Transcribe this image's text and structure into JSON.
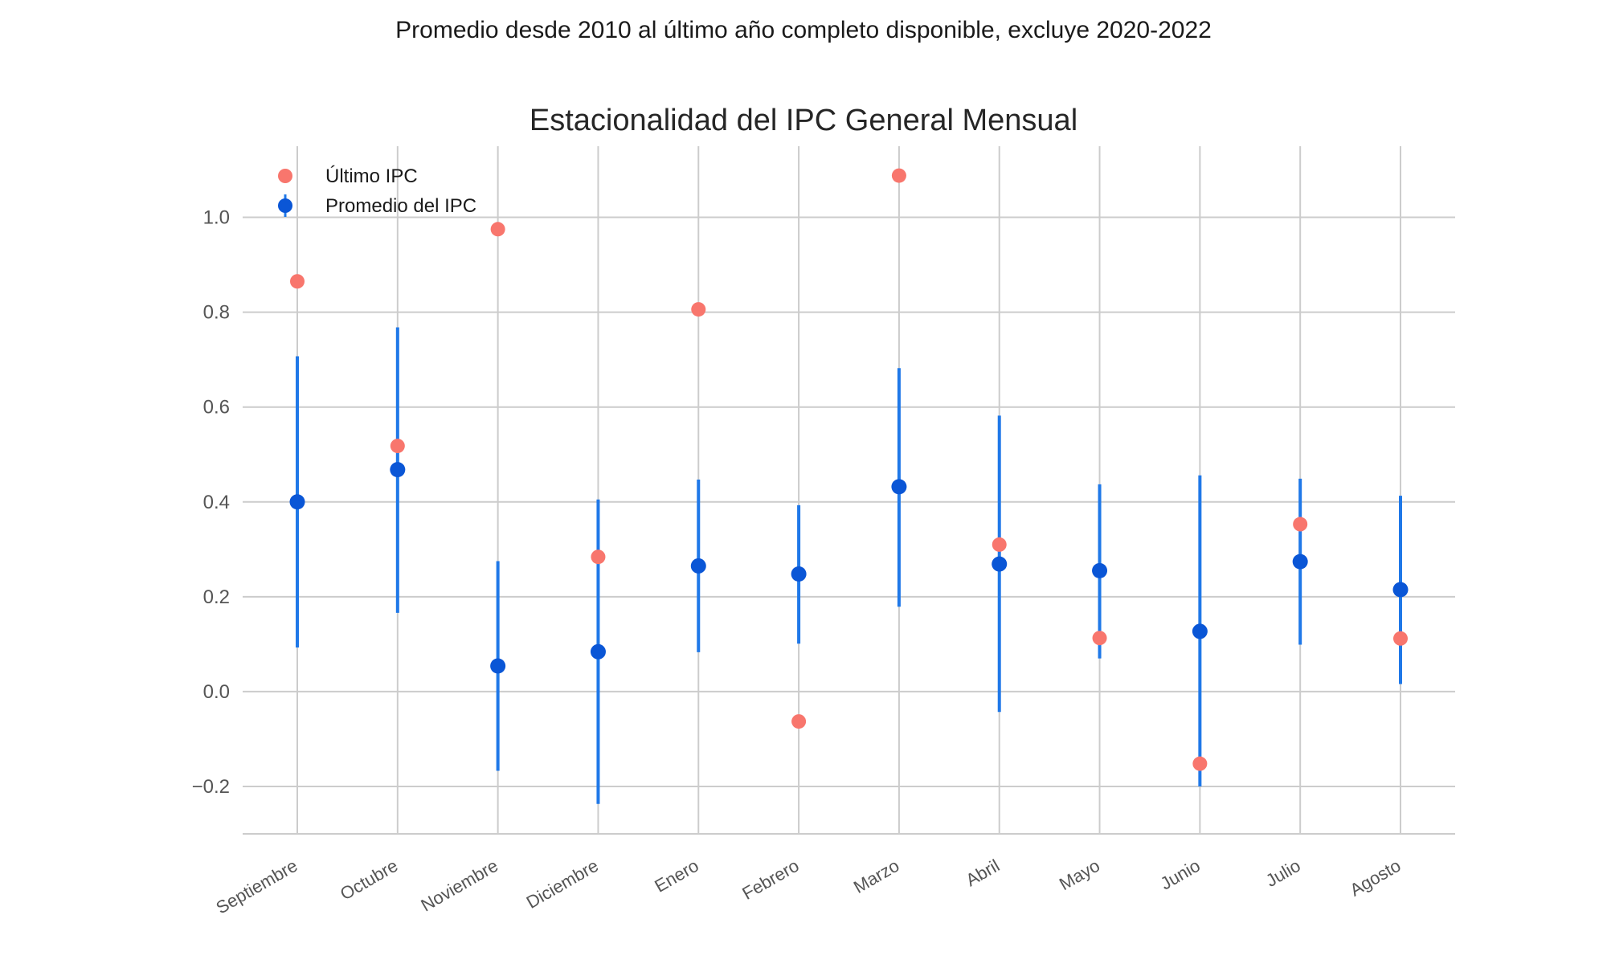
{
  "chart_data": {
    "type": "errorbar",
    "suptitle": "Promedio desde 2010 al último año completo disponible, excluye 2020-2022",
    "title": "Estacionalidad del IPC General Mensual",
    "xlabel": "",
    "ylabel": "",
    "ylim": [
      -0.3,
      1.15
    ],
    "yticks": [
      -0.2,
      0.0,
      0.2,
      0.4,
      0.6,
      0.8,
      1.0
    ],
    "ytick_labels": [
      "−0.2",
      "0.0",
      "0.2",
      "0.4",
      "0.6",
      "0.8",
      "1.0"
    ],
    "categories": [
      "Septiembre",
      "Octubre",
      "Noviembre",
      "Diciembre",
      "Enero",
      "Febrero",
      "Marzo",
      "Abril",
      "Mayo",
      "Junio",
      "Julio",
      "Agosto"
    ],
    "series": [
      {
        "name": "Último IPC",
        "kind": "scatter",
        "color": "#f8766d",
        "values": [
          0.865,
          0.518,
          0.975,
          0.284,
          0.806,
          -0.063,
          1.088,
          0.31,
          0.113,
          -0.152,
          0.353,
          0.112
        ]
      },
      {
        "name": "Promedio del IPC",
        "kind": "errorbar",
        "color": "#0a56d6",
        "bar_color": "#1f78e8",
        "values": [
          0.4,
          0.468,
          0.054,
          0.084,
          0.265,
          0.248,
          0.432,
          0.269,
          0.255,
          0.127,
          0.274,
          0.215
        ],
        "lower": [
          0.093,
          0.166,
          -0.167,
          -0.237,
          0.083,
          0.101,
          0.179,
          -0.043,
          0.07,
          -0.2,
          0.099,
          0.016
        ],
        "upper": [
          0.707,
          0.768,
          0.275,
          0.405,
          0.447,
          0.393,
          0.682,
          0.582,
          0.437,
          0.456,
          0.449,
          0.413
        ]
      }
    ],
    "legend": {
      "location": "top-left",
      "entries": [
        "Último IPC",
        "Promedio del IPC"
      ]
    },
    "grid": true
  }
}
